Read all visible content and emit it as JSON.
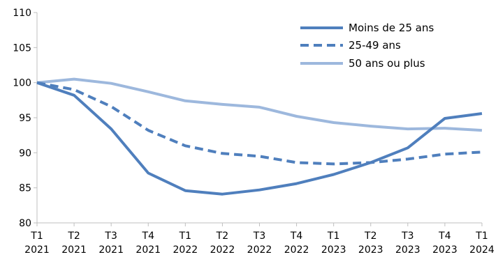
{
  "chart_data": {
    "type": "line",
    "title": "",
    "xlabel": "",
    "ylabel": "",
    "ylim": [
      80,
      110
    ],
    "yticks": [
      "80",
      "85",
      "90",
      "95",
      "100",
      "105",
      "110"
    ],
    "grid": false,
    "legend_position": "top-right",
    "categories": [
      {
        "q": "T1",
        "year": "2021"
      },
      {
        "q": "T2",
        "year": "2021"
      },
      {
        "q": "T3",
        "year": "2021"
      },
      {
        "q": "T4",
        "year": "2021"
      },
      {
        "q": "T1",
        "year": "2022"
      },
      {
        "q": "T2",
        "year": "2022"
      },
      {
        "q": "T3",
        "year": "2022"
      },
      {
        "q": "T4",
        "year": "2022"
      },
      {
        "q": "T1",
        "year": "2023"
      },
      {
        "q": "T2",
        "year": "2023"
      },
      {
        "q": "T3",
        "year": "2023"
      },
      {
        "q": "T4",
        "year": "2023"
      },
      {
        "q": "T1",
        "year": "2024"
      }
    ],
    "series": [
      {
        "name": "Moins de 25 ans",
        "color": "#4f7fbd",
        "style": "solid",
        "values": [
          100.0,
          98.2,
          93.4,
          87.1,
          84.6,
          84.1,
          84.7,
          85.6,
          86.9,
          88.6,
          90.7,
          94.9,
          95.6
        ]
      },
      {
        "name": "25-49 ans",
        "color": "#4f7fbd",
        "style": "dashed",
        "values": [
          100.0,
          99.0,
          96.6,
          93.2,
          91.0,
          89.9,
          89.5,
          88.6,
          88.4,
          88.6,
          89.1,
          89.8,
          90.1
        ]
      },
      {
        "name": "50 ans ou plus",
        "color": "#9db8dd",
        "style": "solid",
        "values": [
          100.0,
          100.5,
          99.9,
          98.7,
          97.4,
          96.9,
          96.5,
          95.2,
          94.3,
          93.8,
          93.4,
          93.5,
          93.2
        ]
      }
    ]
  }
}
